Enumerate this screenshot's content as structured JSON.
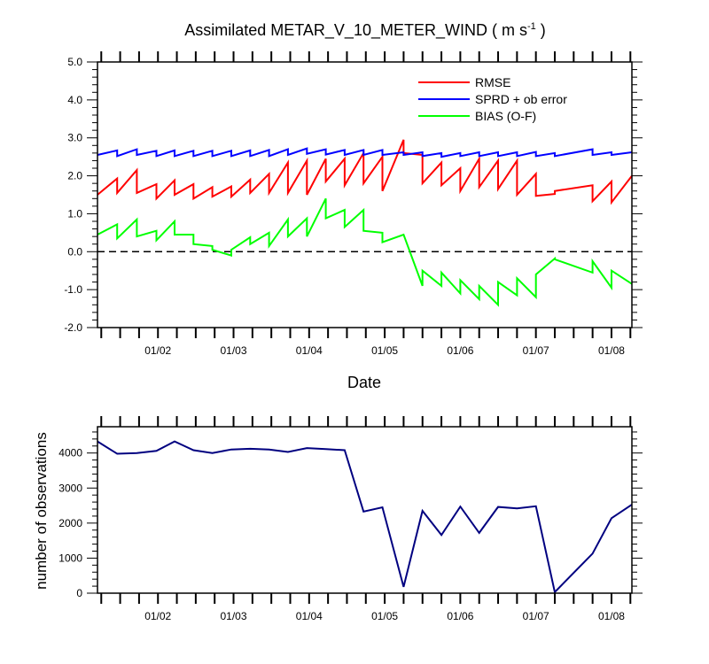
{
  "chart_data": [
    {
      "type": "line",
      "title": "Assimilated METAR_V_10_METER_WIND",
      "title_units_prefix": "( m s",
      "title_units_exponent": "-1",
      "title_units_suffix": " )",
      "xlabel": "Date",
      "ylabel": "",
      "xlim": [
        1.2,
        8.27
      ],
      "ylim": [
        -2.0,
        5.0
      ],
      "x_ticks": [
        {
          "x": 2,
          "label": "01/02"
        },
        {
          "x": 3,
          "label": "01/03"
        },
        {
          "x": 4,
          "label": "01/04"
        },
        {
          "x": 5,
          "label": "01/05"
        },
        {
          "x": 6,
          "label": "01/06"
        },
        {
          "x": 7,
          "label": "01/07"
        },
        {
          "x": 8,
          "label": "01/08"
        }
      ],
      "y_ticks": [
        {
          "y": 5.0,
          "label": "5.0"
        },
        {
          "y": 4.0,
          "label": "4.0"
        },
        {
          "y": 3.0,
          "label": "3.0"
        },
        {
          "y": 2.0,
          "label": "2.0"
        },
        {
          "y": 1.0,
          "label": "1.0"
        },
        {
          "y": 0.0,
          "label": "0.0"
        },
        {
          "y": -1.0,
          "label": "-1.0"
        },
        {
          "y": -2.0,
          "label": "-2.0"
        }
      ],
      "reference_line": {
        "y": 0,
        "style": "dashed"
      },
      "legend_position": "top-right",
      "series": [
        {
          "name": "RMSE",
          "color": "#ff0000",
          "x": [
            1.2,
            1.46,
            1.46,
            1.72,
            1.72,
            1.98,
            1.98,
            2.22,
            2.22,
            2.47,
            2.47,
            2.72,
            2.72,
            2.97,
            2.97,
            3.22,
            3.22,
            3.47,
            3.47,
            3.72,
            3.72,
            3.97,
            3.97,
            4.22,
            4.22,
            4.47,
            4.47,
            4.72,
            4.72,
            4.97,
            4.97,
            5.25,
            5.25,
            5.5,
            5.5,
            5.75,
            5.75,
            6.0,
            6.0,
            6.25,
            6.25,
            6.5,
            6.5,
            6.75,
            6.75,
            7.0,
            7.0,
            7.25,
            7.25,
            7.75,
            7.75,
            8.0,
            8.0,
            8.27
          ],
          "y": [
            1.5,
            1.93,
            1.55,
            2.15,
            1.55,
            1.78,
            1.4,
            1.88,
            1.5,
            1.78,
            1.4,
            1.7,
            1.45,
            1.72,
            1.45,
            1.9,
            1.55,
            2.05,
            1.55,
            2.35,
            1.55,
            2.4,
            1.5,
            2.45,
            1.85,
            2.45,
            1.75,
            2.6,
            1.8,
            2.5,
            1.6,
            2.95,
            2.6,
            2.55,
            1.8,
            2.35,
            1.75,
            2.2,
            1.6,
            2.45,
            1.7,
            2.4,
            1.65,
            2.4,
            1.5,
            2.05,
            1.47,
            1.52,
            1.6,
            1.75,
            1.33,
            1.85,
            1.3,
            2.0
          ]
        },
        {
          "name": "SPRD + ob error",
          "color": "#0000ff",
          "x": [
            1.2,
            1.46,
            1.46,
            1.72,
            1.72,
            1.98,
            1.98,
            2.22,
            2.22,
            2.47,
            2.47,
            2.72,
            2.72,
            2.97,
            2.97,
            3.22,
            3.22,
            3.47,
            3.47,
            3.72,
            3.72,
            3.97,
            3.97,
            4.22,
            4.22,
            4.47,
            4.47,
            4.72,
            4.72,
            4.97,
            4.97,
            5.25,
            5.25,
            5.5,
            5.5,
            5.75,
            5.75,
            6.0,
            6.0,
            6.25,
            6.25,
            6.5,
            6.5,
            6.75,
            6.75,
            7.0,
            7.0,
            7.25,
            7.25,
            7.75,
            7.75,
            8.0,
            8.0,
            8.27
          ],
          "y": [
            2.55,
            2.67,
            2.52,
            2.7,
            2.55,
            2.66,
            2.52,
            2.67,
            2.52,
            2.66,
            2.52,
            2.66,
            2.52,
            2.66,
            2.52,
            2.67,
            2.52,
            2.68,
            2.52,
            2.7,
            2.55,
            2.72,
            2.58,
            2.7,
            2.56,
            2.68,
            2.55,
            2.68,
            2.55,
            2.68,
            2.55,
            2.62,
            2.55,
            2.62,
            2.52,
            2.6,
            2.5,
            2.6,
            2.52,
            2.62,
            2.52,
            2.62,
            2.52,
            2.62,
            2.52,
            2.63,
            2.52,
            2.6,
            2.52,
            2.7,
            2.55,
            2.62,
            2.55,
            2.62
          ]
        },
        {
          "name": "BIAS (O-F)",
          "color": "#00ff00",
          "x": [
            1.2,
            1.46,
            1.46,
            1.72,
            1.72,
            1.98,
            1.98,
            2.22,
            2.22,
            2.47,
            2.47,
            2.72,
            2.72,
            2.97,
            2.97,
            3.22,
            3.22,
            3.47,
            3.47,
            3.72,
            3.72,
            3.97,
            3.97,
            4.22,
            4.22,
            4.47,
            4.47,
            4.72,
            4.72,
            4.97,
            4.97,
            5.25,
            5.25,
            5.5,
            5.5,
            5.75,
            5.75,
            6.0,
            6.0,
            6.25,
            6.25,
            6.5,
            6.5,
            6.75,
            6.75,
            7.0,
            7.0,
            7.25,
            7.25,
            7.75,
            7.75,
            8.0,
            8.0,
            8.27
          ],
          "y": [
            0.45,
            0.72,
            0.35,
            0.85,
            0.4,
            0.55,
            0.3,
            0.8,
            0.45,
            0.45,
            0.2,
            0.15,
            0.05,
            -0.1,
            0.05,
            0.38,
            0.2,
            0.5,
            0.15,
            0.85,
            0.4,
            0.88,
            0.4,
            1.4,
            0.88,
            1.1,
            0.65,
            1.1,
            0.55,
            0.5,
            0.25,
            0.45,
            0.45,
            -0.9,
            -0.5,
            -0.9,
            -0.55,
            -1.1,
            -0.75,
            -1.25,
            -0.9,
            -1.4,
            -0.8,
            -1.15,
            -0.7,
            -1.2,
            -0.6,
            -0.18,
            -0.2,
            -0.55,
            -0.25,
            -0.95,
            -0.5,
            -0.85
          ]
        }
      ]
    },
    {
      "type": "line",
      "title": "",
      "xlabel": "",
      "ylabel": "number of observations",
      "xlim": [
        1.2,
        8.27
      ],
      "ylim": [
        0,
        4750
      ],
      "x_ticks": [
        {
          "x": 2,
          "label": "01/02"
        },
        {
          "x": 3,
          "label": "01/03"
        },
        {
          "x": 4,
          "label": "01/04"
        },
        {
          "x": 5,
          "label": "01/05"
        },
        {
          "x": 6,
          "label": "01/06"
        },
        {
          "x": 7,
          "label": "01/07"
        },
        {
          "x": 8,
          "label": "01/08"
        }
      ],
      "y_ticks": [
        {
          "y": 0,
          "label": "0"
        },
        {
          "y": 1000,
          "label": "1000"
        },
        {
          "y": 2000,
          "label": "2000"
        },
        {
          "y": 3000,
          "label": "3000"
        },
        {
          "y": 4000,
          "label": "4000"
        }
      ],
      "series": [
        {
          "name": "number of observations",
          "color": "#000080",
          "x": [
            1.2,
            1.46,
            1.72,
            1.98,
            2.22,
            2.47,
            2.72,
            2.97,
            3.22,
            3.47,
            3.72,
            3.97,
            4.22,
            4.47,
            4.72,
            4.97,
            5.25,
            5.5,
            5.75,
            6.0,
            6.25,
            6.5,
            6.75,
            7.0,
            7.25,
            7.75,
            8.0,
            8.27
          ],
          "y": [
            4330,
            3980,
            4000,
            4060,
            4330,
            4080,
            4000,
            4100,
            4120,
            4100,
            4030,
            4140,
            4110,
            4080,
            2330,
            2450,
            180,
            2350,
            1660,
            2470,
            1720,
            2460,
            2420,
            2480,
            30,
            1130,
            2140,
            2530
          ]
        }
      ]
    }
  ]
}
